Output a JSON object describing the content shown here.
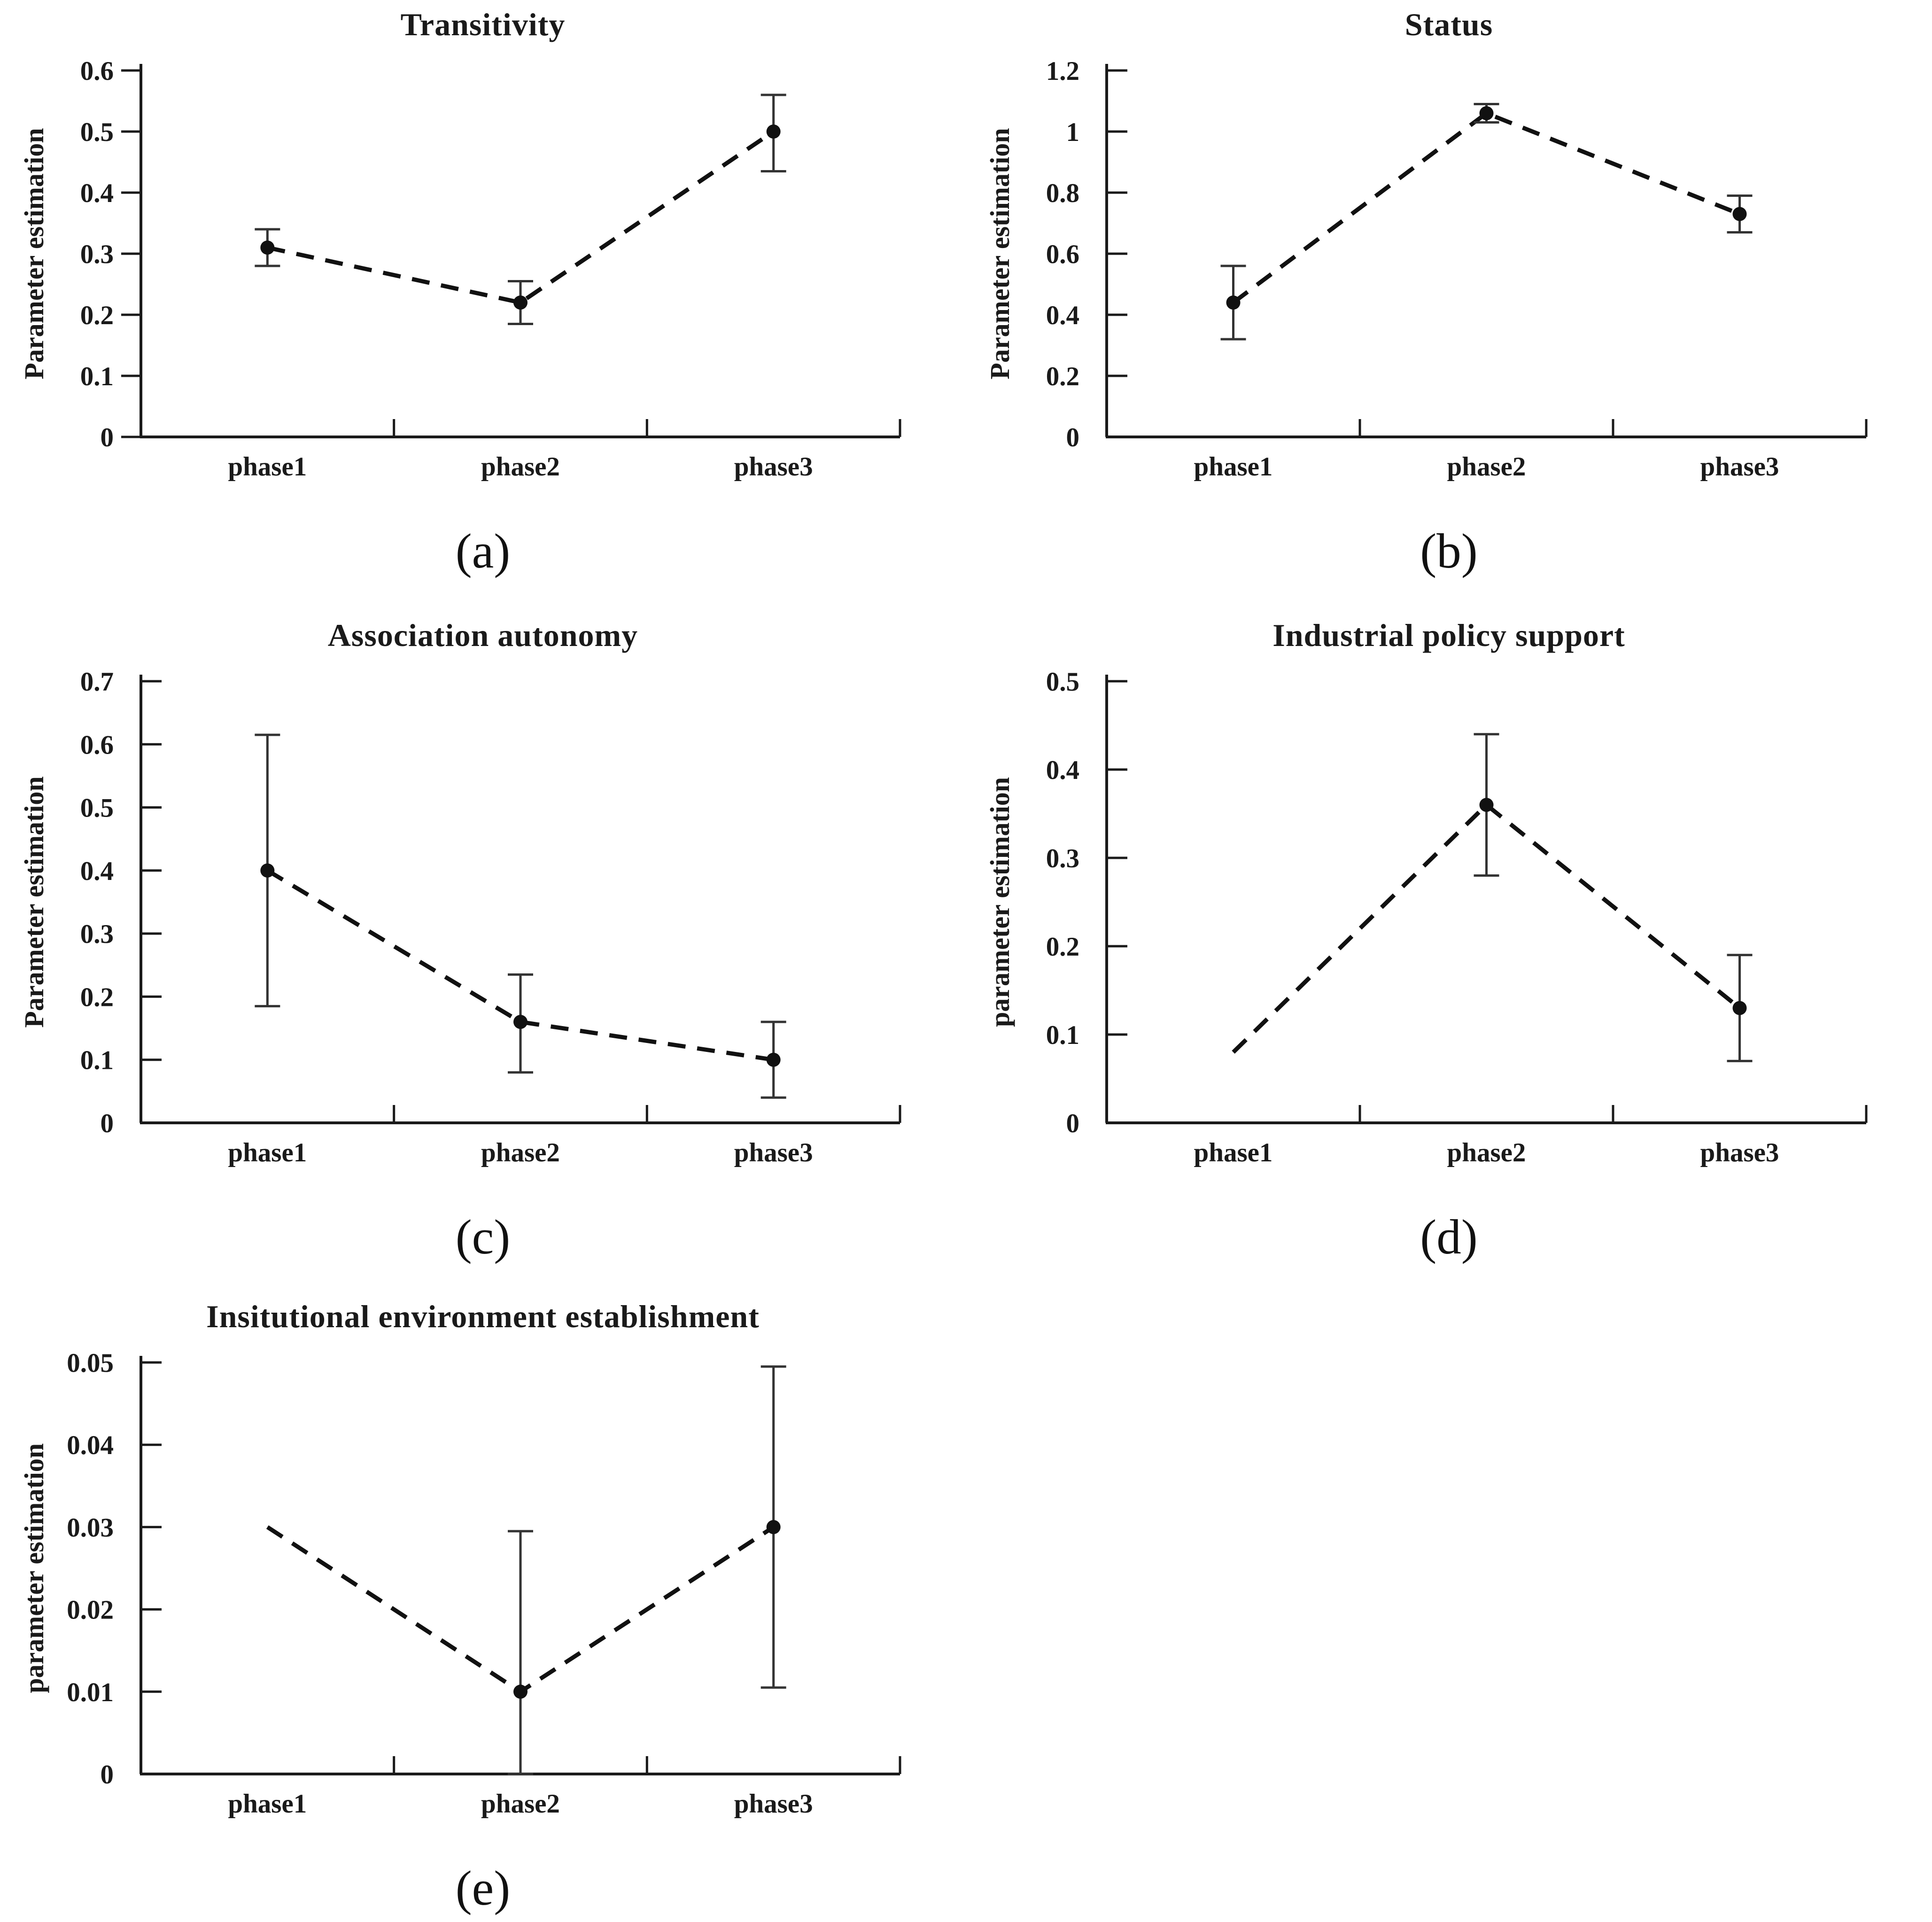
{
  "page": {
    "background": "#ffffff"
  },
  "colors": {
    "ink": "#1a1a1a",
    "line": "#111111",
    "error_bar": "#333333",
    "marker": "#111111"
  },
  "chart_data": [
    {
      "id": "a",
      "type": "line",
      "title": "Transitivity",
      "panel_label": "(a)",
      "ylabel": "Parameter estimation",
      "xlabel": "",
      "categories": [
        "phase1",
        "phase2",
        "phase3"
      ],
      "ylim": [
        0,
        0.6
      ],
      "yticks": [
        0,
        0.1,
        0.2,
        0.3,
        0.4,
        0.5,
        0.6
      ],
      "ytick_labels": [
        "0",
        "0.1",
        "0.2",
        "0.3",
        "0.4",
        "0.5",
        "0.6"
      ],
      "ytick_side": "out",
      "grid": false,
      "legend": "none",
      "line_style": "dashed",
      "series": [
        {
          "name": "parameter estimation",
          "values": [
            0.31,
            0.22,
            0.5
          ],
          "err_low": [
            0.28,
            0.185,
            0.435
          ],
          "err_high": [
            0.34,
            0.255,
            0.56
          ],
          "markers": [
            true,
            true,
            true
          ]
        }
      ]
    },
    {
      "id": "b",
      "type": "line",
      "title": "Status",
      "panel_label": "(b)",
      "ylabel": "Parameter estimation",
      "xlabel": "",
      "categories": [
        "phase1",
        "phase2",
        "phase3"
      ],
      "ylim": [
        0,
        1.2
      ],
      "yticks": [
        0,
        0.2,
        0.4,
        0.6,
        0.8,
        1,
        1.2
      ],
      "ytick_labels": [
        "0",
        "0.2",
        "0.4",
        "0.6",
        "0.8",
        "1",
        "1.2"
      ],
      "ytick_side": "in",
      "grid": false,
      "legend": "none",
      "line_style": "dashed",
      "series": [
        {
          "name": "parameter estimation",
          "values": [
            0.44,
            1.06,
            0.73
          ],
          "err_low": [
            0.32,
            1.03,
            0.67
          ],
          "err_high": [
            0.56,
            1.09,
            0.79
          ],
          "markers": [
            true,
            true,
            true
          ]
        }
      ]
    },
    {
      "id": "c",
      "type": "line",
      "title": "Association autonomy",
      "panel_label": "(c)",
      "ylabel": "Parameter estimation",
      "xlabel": "",
      "categories": [
        "phase1",
        "phase2",
        "phase3"
      ],
      "ylim": [
        0,
        0.7
      ],
      "yticks": [
        0,
        0.1,
        0.2,
        0.3,
        0.4,
        0.5,
        0.6,
        0.7
      ],
      "ytick_labels": [
        "0",
        "0.1",
        "0.2",
        "0.3",
        "0.4",
        "0.5",
        "0.6",
        "0.7"
      ],
      "ytick_side": "in",
      "grid": false,
      "legend": "none",
      "line_style": "dashed",
      "series": [
        {
          "name": "parameter estimation",
          "values": [
            0.4,
            0.16,
            0.1
          ],
          "err_low": [
            0.185,
            0.08,
            0.04
          ],
          "err_high": [
            0.615,
            0.235,
            0.16
          ],
          "markers": [
            true,
            true,
            true
          ]
        }
      ]
    },
    {
      "id": "d",
      "type": "line",
      "title": "Industrial policy support",
      "panel_label": "(d)",
      "ylabel": "parameter estimation",
      "xlabel": "",
      "categories": [
        "phase1",
        "phase2",
        "phase3"
      ],
      "ylim": [
        0,
        0.5
      ],
      "yticks": [
        0,
        0.1,
        0.2,
        0.3,
        0.4,
        0.5
      ],
      "ytick_labels": [
        "0",
        "0.1",
        "0.2",
        "0.3",
        "0.4",
        "0.5"
      ],
      "ytick_side": "in",
      "grid": false,
      "legend": "none",
      "line_style": "dashed",
      "series": [
        {
          "name": "parameter estimation",
          "values": [
            0.08,
            0.36,
            0.13
          ],
          "err_low": [
            null,
            0.28,
            0.07
          ],
          "err_high": [
            null,
            0.44,
            0.19
          ],
          "markers": [
            false,
            true,
            true
          ]
        }
      ]
    },
    {
      "id": "e",
      "type": "line",
      "title": "Insitutional environment establishment",
      "panel_label": "(e)",
      "ylabel": "parameter estimation",
      "xlabel": "",
      "categories": [
        "phase1",
        "phase2",
        "phase3"
      ],
      "ylim": [
        0,
        0.05
      ],
      "yticks": [
        0,
        0.01,
        0.02,
        0.03,
        0.04,
        0.05
      ],
      "ytick_labels": [
        "0",
        "0.01",
        "0.02",
        "0.03",
        "0.04",
        "0.05"
      ],
      "ytick_side": "in",
      "grid": false,
      "legend": "none",
      "line_style": "dashed",
      "series": [
        {
          "name": "parameter estimation",
          "values": [
            0.03,
            0.01,
            0.03
          ],
          "err_low": [
            null,
            0,
            0.0105
          ],
          "err_high": [
            null,
            0.0295,
            0.0495
          ],
          "markers": [
            false,
            true,
            true
          ]
        }
      ]
    }
  ]
}
